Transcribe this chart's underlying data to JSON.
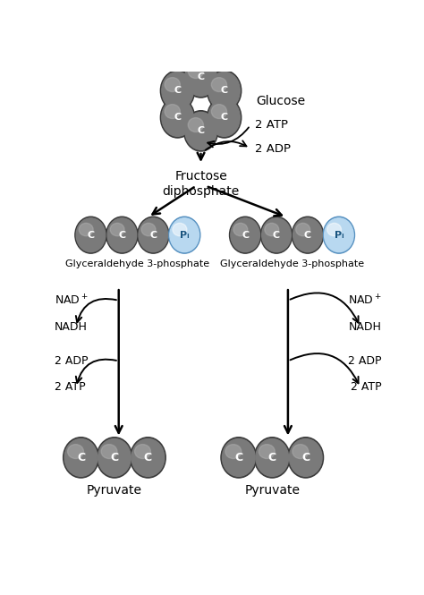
{
  "bg_color": "#ffffff",
  "carbon_fill": "#7a7a7a",
  "carbon_edge": "#3a3a3a",
  "phosphate_fill": "#b8d8f0",
  "phosphate_edge": "#5590c0",
  "text_color": "#000000",
  "glucose_label": "Glucose",
  "fructose_label": "Fructose\ndiphosphate",
  "g3p_label": "Glyceraldehyde 3-phosphate",
  "pyruvate_label": "Pyruvate",
  "arrow_color": "#000000",
  "figsize": [
    4.74,
    6.65
  ],
  "dpi": 100
}
